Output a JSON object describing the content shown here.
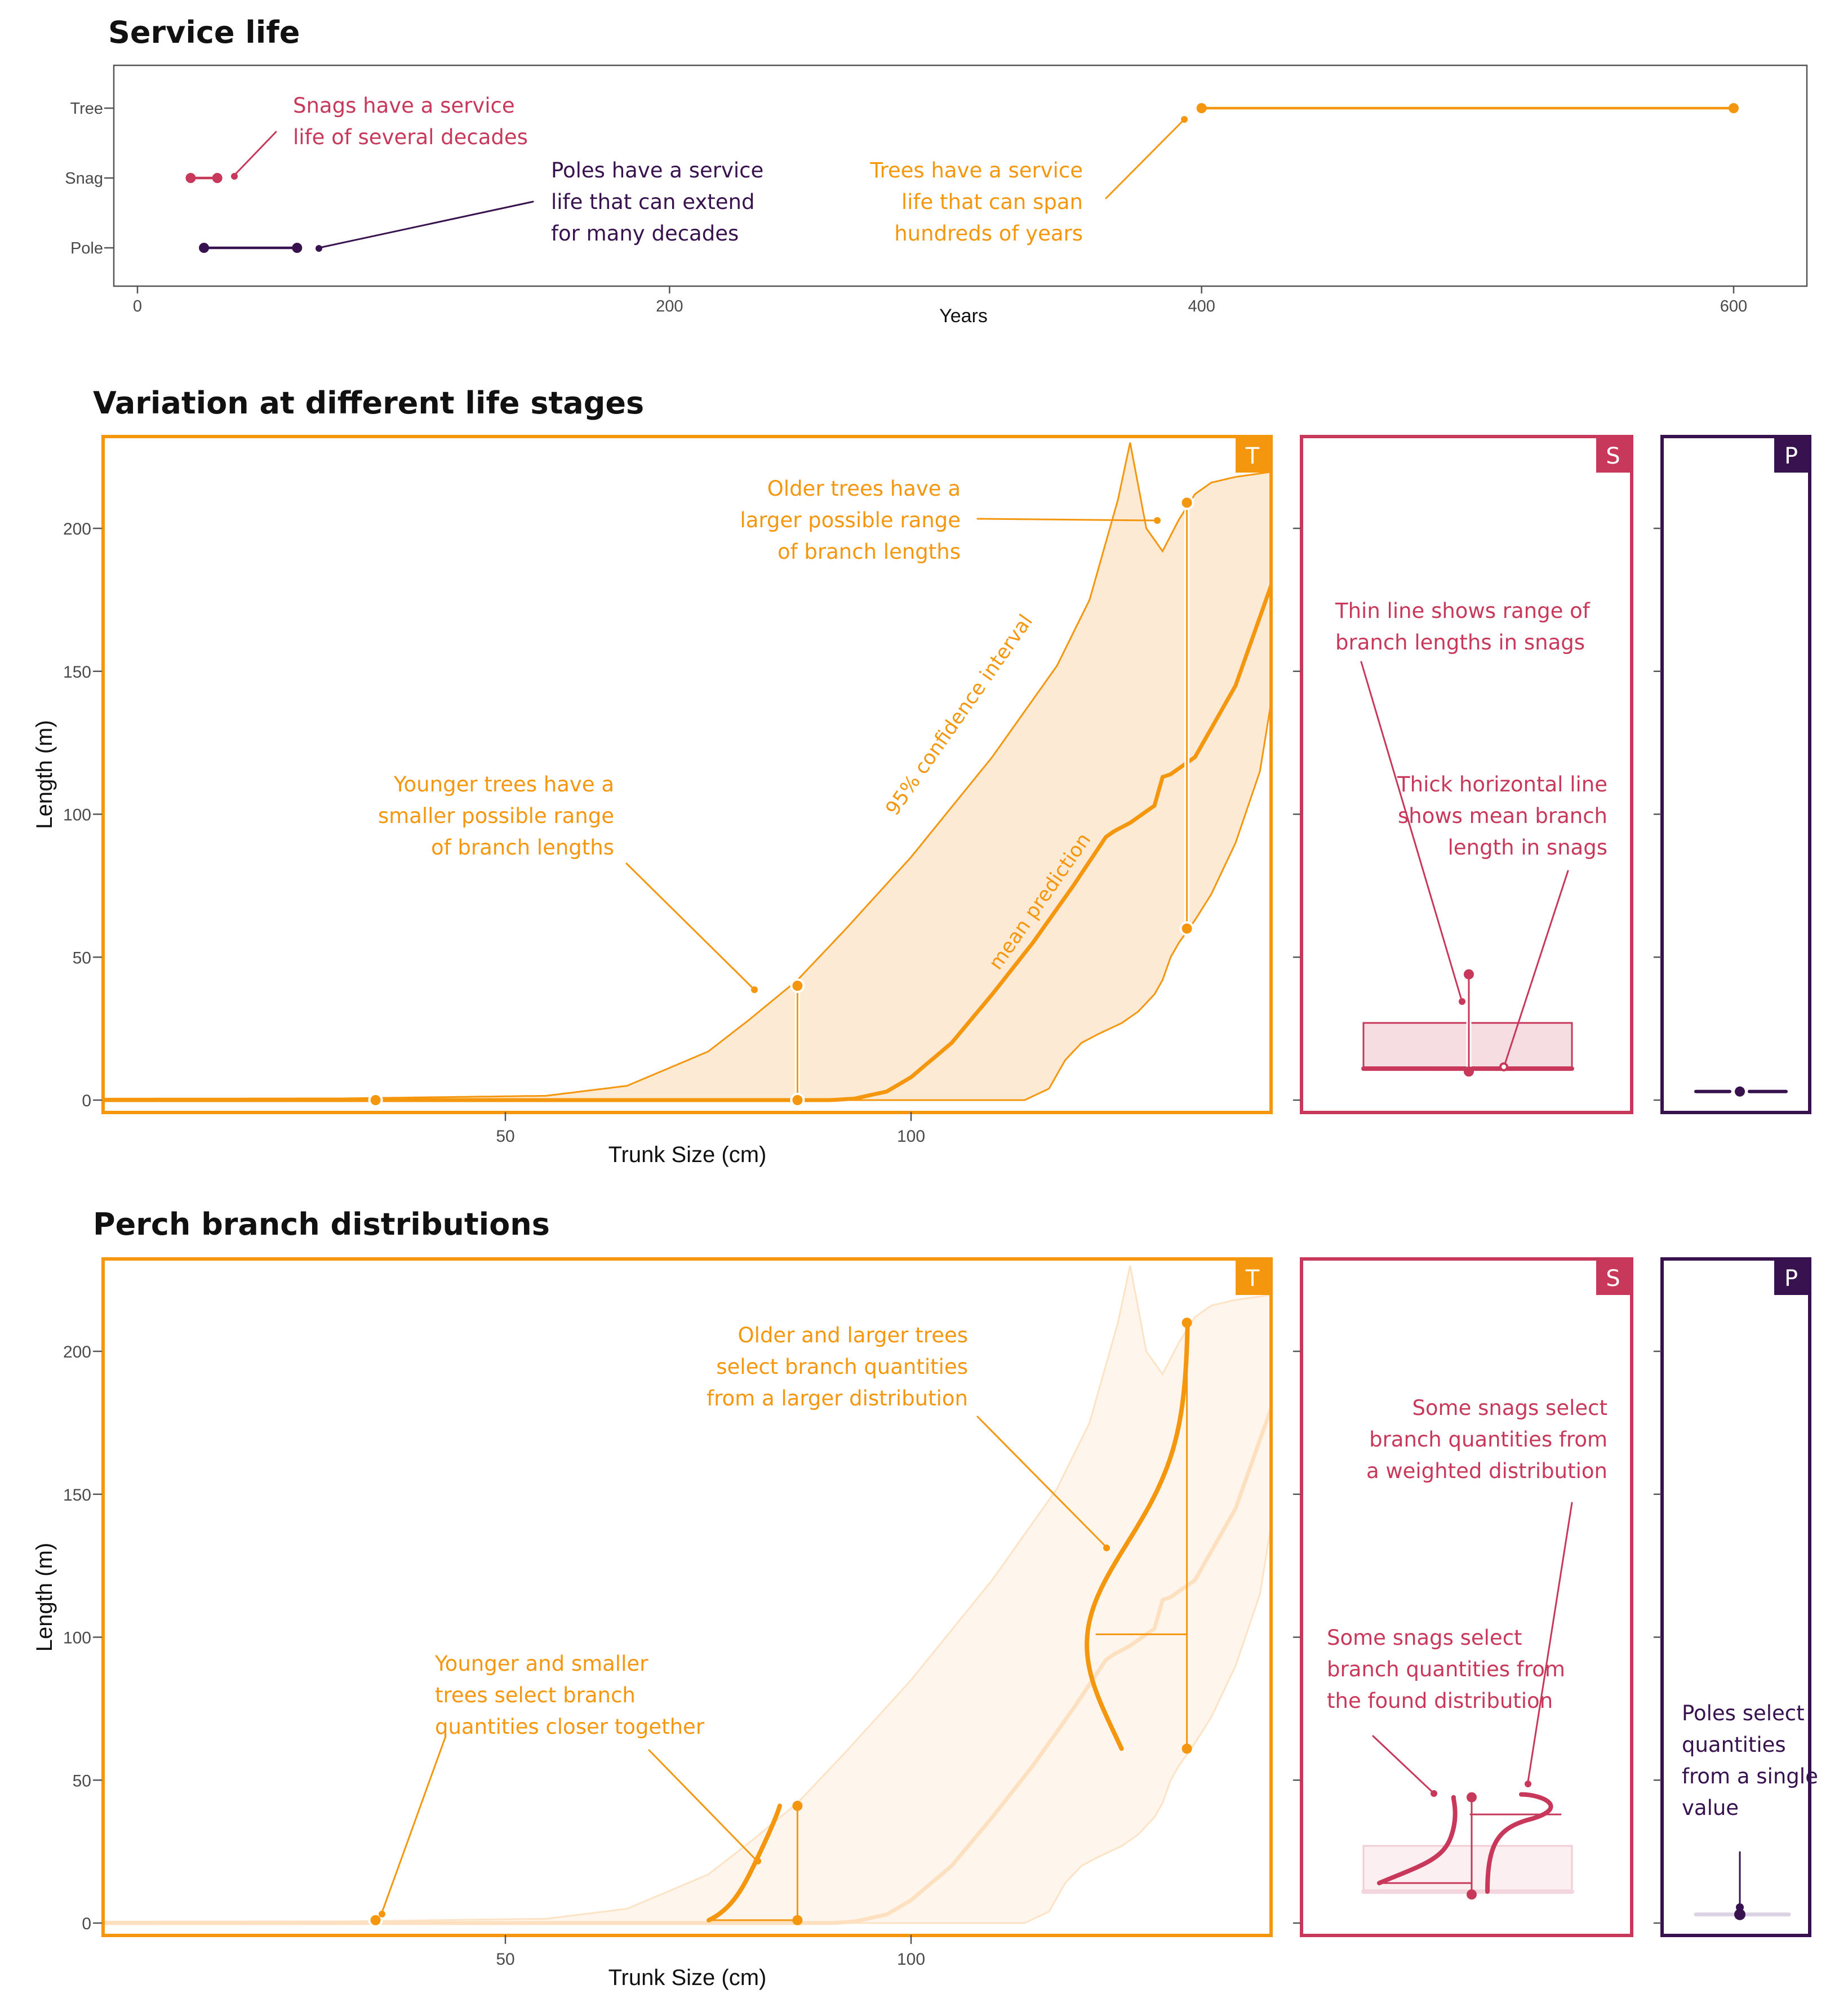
{
  "colors": {
    "tree": "#F5970E",
    "snag": "#C8385A",
    "pole": "#37124F",
    "tree_fill": "#FCEAD5",
    "snag_fill": "#F6DDE2",
    "pole_fill": "#E3DCEA"
  },
  "chart_data": [
    {
      "type": "line",
      "title": "Service life",
      "xlabel": "Years",
      "ylabel": "",
      "xlim": [
        0,
        625
      ],
      "xticks": [
        "0",
        "200",
        "400",
        "600"
      ],
      "categories": [
        "Tree",
        "Snag",
        "Pole"
      ],
      "series": [
        {
          "name": "Tree",
          "x": [
            400,
            600
          ],
          "y": [
            "Tree",
            "Tree"
          ]
        },
        {
          "name": "Snag",
          "x": [
            20,
            30
          ],
          "y": [
            "Snag",
            "Snag"
          ]
        },
        {
          "name": "Pole",
          "x": [
            25,
            60
          ],
          "y": [
            "Pole",
            "Pole"
          ]
        }
      ],
      "annotations": [
        {
          "series": "Snag",
          "lines": [
            "Snags have a service",
            "life of several decades"
          ]
        },
        {
          "series": "Pole",
          "lines": [
            "Poles have a service",
            "life that can extend",
            "for many decades"
          ]
        },
        {
          "series": "Tree",
          "lines": [
            "Trees have a service",
            "life that can span",
            "hundreds of years"
          ]
        }
      ]
    },
    {
      "type": "area",
      "title": "Variation at different life stages",
      "xlabel": "Trunk Size (cm)",
      "ylabel": "Length (m)",
      "xlim": [
        0,
        145
      ],
      "ylim": [
        -5,
        232
      ],
      "xticks": [
        "50",
        "100"
      ],
      "yticks": [
        "0",
        "50",
        "100",
        "150",
        "200"
      ],
      "panel_labels": [
        "T",
        "S",
        "P"
      ],
      "series": [
        {
          "name": "95% confidence interval upper",
          "x": [
            0,
            30,
            55,
            65,
            75,
            80,
            86,
            92,
            100,
            110,
            118,
            122,
            124,
            125.5,
            127,
            129,
            131,
            133,
            135,
            137,
            140,
            145
          ],
          "y": [
            0.5,
            0.6,
            1.5,
            5,
            17,
            28,
            42,
            60,
            85,
            120,
            152,
            175,
            195,
            210,
            230,
            200,
            192,
            203,
            212,
            216,
            218,
            220
          ]
        },
        {
          "name": "mean prediction",
          "x": [
            0,
            90,
            93,
            97,
            100,
            105,
            110,
            115,
            120,
            124,
            125,
            127,
            130,
            131,
            132,
            135,
            140,
            145
          ],
          "y": [
            0,
            0,
            0.5,
            3,
            8,
            20,
            37,
            55,
            75,
            92,
            94,
            97,
            103,
            113,
            114,
            120,
            145,
            185
          ]
        },
        {
          "name": "95% confidence interval lower",
          "x": [
            0,
            114,
            117,
            119,
            121,
            123,
            126,
            128,
            130,
            131,
            132,
            133,
            135,
            137,
            140,
            143,
            145
          ],
          "y": [
            0,
            0,
            4,
            14,
            20,
            23,
            27,
            31,
            37,
            42,
            50,
            55,
            63,
            72,
            90,
            115,
            150
          ]
        }
      ],
      "markers": [
        {
          "x": 34,
          "y": 0,
          "series": "tree"
        },
        {
          "x": 86,
          "low": 0,
          "high": 40,
          "series": "tree"
        },
        {
          "x": 134,
          "low": 60,
          "high": 209,
          "series": "tree"
        }
      ],
      "annotations": [
        {
          "lines": [
            "Older trees have a",
            "larger possible range",
            "of branch lengths"
          ]
        },
        {
          "lines": [
            "Younger trees have a",
            "smaller possible range",
            "of branch lengths"
          ]
        },
        {
          "lines": [
            "95% confidence interval"
          ]
        },
        {
          "lines": [
            "mean prediction"
          ]
        },
        {
          "lines": [
            "Thin line shows range of",
            "branch lengths in snags"
          ]
        },
        {
          "lines": [
            "Thick horizontal line",
            "shows mean branch",
            "length in snags"
          ]
        }
      ],
      "snag_range": {
        "low": 10,
        "high": 44,
        "mean": 11,
        "band_low": 11,
        "band_high": 27
      },
      "pole_value": 3
    },
    {
      "type": "line",
      "title": "Perch branch distributions",
      "xlabel": "Trunk Size (cm)",
      "ylabel": "Length (m)",
      "xlim": [
        0,
        145
      ],
      "ylim": [
        -5,
        232
      ],
      "xticks": [
        "50",
        "100"
      ],
      "yticks": [
        "0",
        "50",
        "100",
        "150",
        "200"
      ],
      "panel_labels": [
        "T",
        "S",
        "P"
      ],
      "distributions": [
        {
          "x": 34,
          "value": 1
        },
        {
          "x": 86,
          "low": 1,
          "high": 41,
          "mean": 1
        },
        {
          "x": 134,
          "low": 61,
          "high": 210,
          "mean": 101
        }
      ],
      "snag_distribution": {
        "low": 10,
        "high": 44,
        "weighted_peak": 38
      },
      "pole_value": 3,
      "annotations": [
        {
          "lines": [
            "Older and larger trees",
            "select branch quantities",
            "from a larger distribution"
          ]
        },
        {
          "lines": [
            "Younger and smaller",
            "trees select branch",
            "quantities closer together"
          ]
        },
        {
          "lines": [
            "Some snags select",
            "branch quantities from",
            "a weighted distribution"
          ]
        },
        {
          "lines": [
            "Some snags select",
            "branch quantities from",
            "the found distribution"
          ]
        },
        {
          "lines": [
            "Poles select",
            "quantities",
            "from a single",
            "value"
          ]
        }
      ]
    }
  ]
}
